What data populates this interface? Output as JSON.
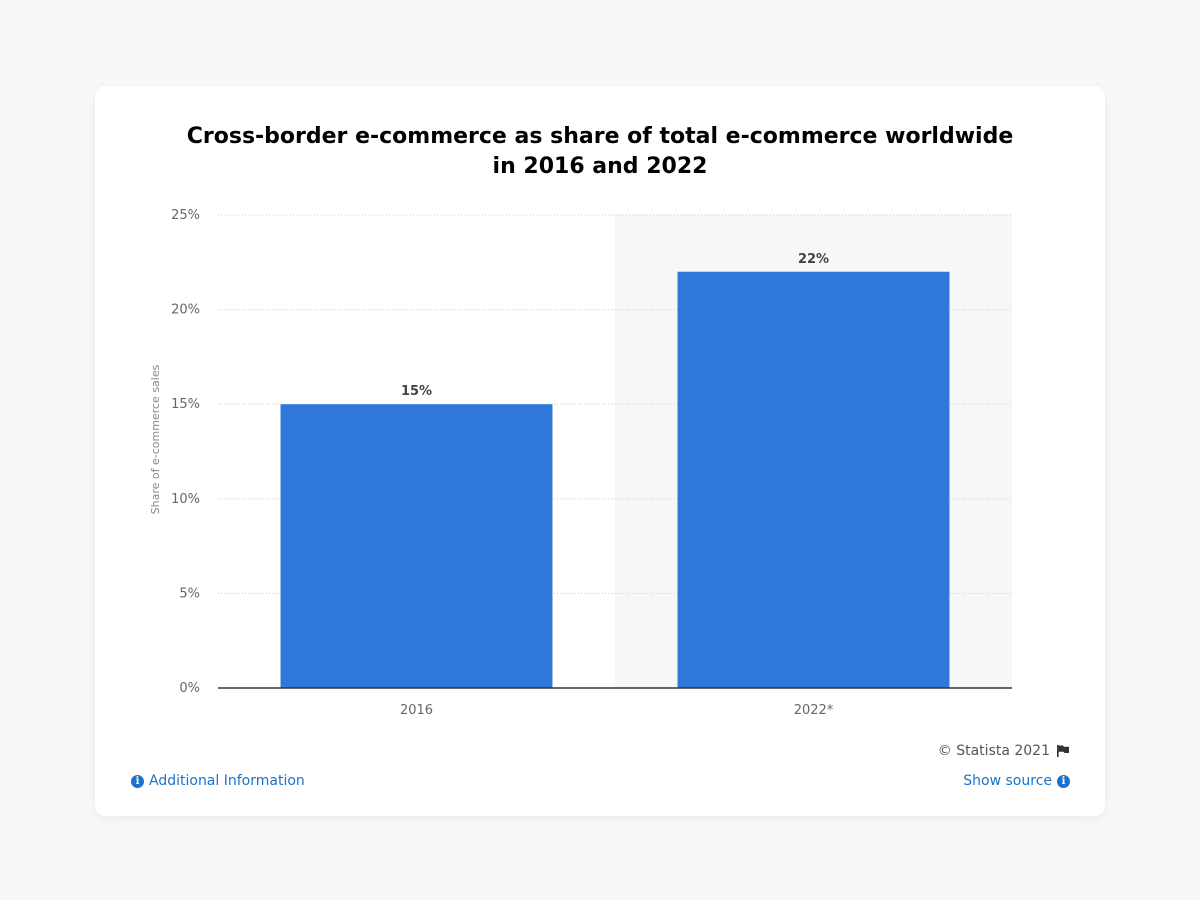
{
  "chart_data": {
    "type": "bar",
    "title": "Cross-border e-commerce as share of total e-commerce worldwide in 2016 and 2022",
    "title_lines": [
      "Cross-border e-commerce as share of total e-commerce worldwide",
      "in 2016 and 2022"
    ],
    "categories": [
      "2016",
      "2022*"
    ],
    "values": [
      15,
      22
    ],
    "data_labels": [
      "15%",
      "22%"
    ],
    "ylabel": "Share of e-commerce sales",
    "xlabel": "",
    "ylim": [
      0,
      25
    ],
    "yticks": [
      0,
      5,
      10,
      15,
      20,
      25
    ],
    "ytick_labels": [
      "0%",
      "5%",
      "10%",
      "15%",
      "20%",
      "25%"
    ],
    "grid": true,
    "highlighted_category": "2022*",
    "bar_color": "#2f78d9"
  },
  "footer": {
    "copyright": "© Statista 2021",
    "additional_info": "Additional Information",
    "show_source": "Show source"
  },
  "icons": {
    "flag": "flag-icon",
    "info": "info-icon"
  }
}
